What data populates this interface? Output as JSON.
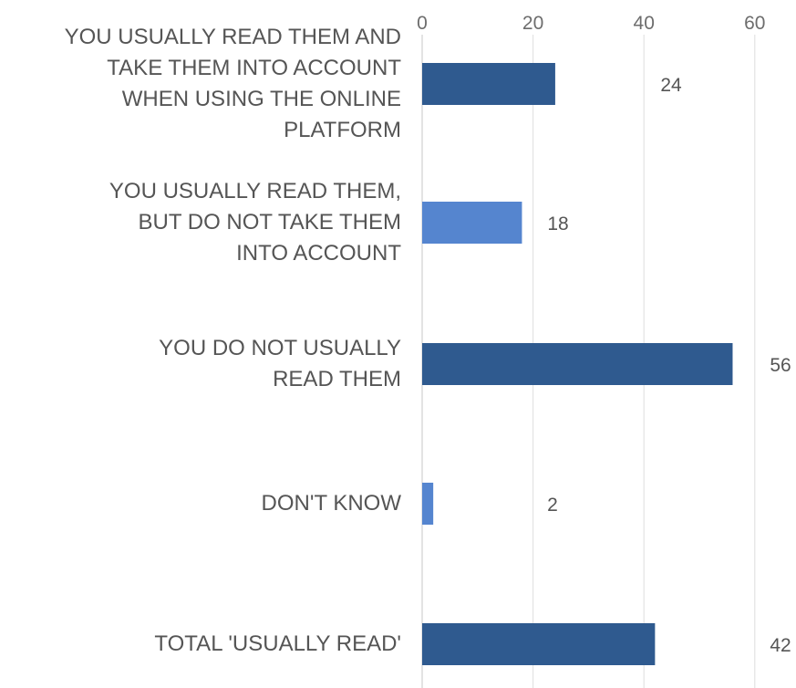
{
  "chart_data": {
    "type": "bar",
    "orientation": "horizontal",
    "categories": [
      "YOU USUALLY READ THEM AND\nTAKE THEM INTO ACCOUNT\nWHEN USING THE ONLINE\nPLATFORM",
      "YOU USUALLY READ THEM,\nBUT DO NOT TAKE THEM\nINTO ACCOUNT",
      "YOU DO NOT USUALLY\nREAD THEM",
      "DON'T KNOW",
      "TOTAL 'USUALLY READ'"
    ],
    "values": [
      24,
      18,
      56,
      2,
      42
    ],
    "value_labels": [
      "24",
      "18",
      "56",
      "2",
      "42"
    ],
    "bar_colors": [
      "#2f5a8f",
      "#5585cf",
      "#2f5a8f",
      "#5585cf",
      "#2f5a8f"
    ],
    "xlim": [
      0,
      60
    ],
    "x_ticks": [
      0,
      20,
      40,
      60
    ],
    "x_tick_labels": [
      "0",
      "20",
      "40",
      "60"
    ],
    "x_axis_position": "top",
    "grid": true,
    "grid_color": "#e3e3e3",
    "legend": "none",
    "title": "",
    "xlabel": "",
    "ylabel": ""
  }
}
